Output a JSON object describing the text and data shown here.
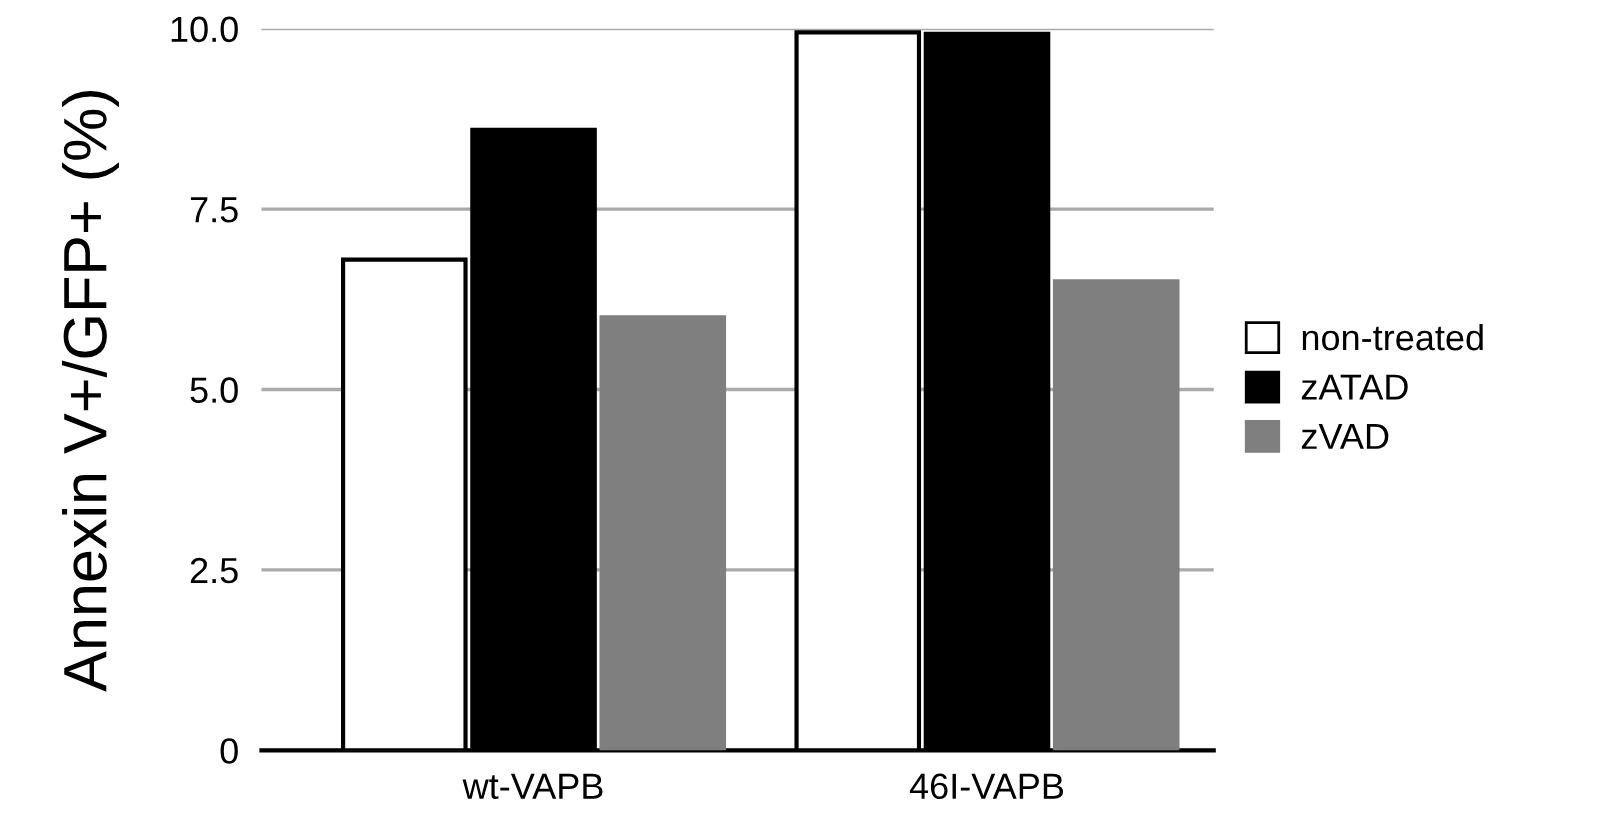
{
  "chart_data": {
    "type": "bar",
    "ylabel": "Annexin V+/GFP+ (%)",
    "categories": [
      "wt-VAPB",
      "46I-VAPB"
    ],
    "series": [
      {
        "name": "non-treated",
        "color": "#ffffff",
        "values": [
          6.8,
          9.95
        ]
      },
      {
        "name": "zATAD",
        "color": "#000000",
        "values": [
          8.6,
          9.93
        ]
      },
      {
        "name": "zVAD",
        "color": "#7f7f7f",
        "values": [
          6.0,
          6.5
        ]
      }
    ],
    "ylim": [
      0,
      10
    ],
    "yticks": [
      {
        "value": 0,
        "label": "0"
      },
      {
        "value": 2.5,
        "label": "2.5"
      },
      {
        "value": 5,
        "label": "5.0"
      },
      {
        "value": 7.5,
        "label": "7.5"
      },
      {
        "value": 10,
        "label": "10.0"
      }
    ],
    "grid": "y",
    "legend": "right"
  }
}
